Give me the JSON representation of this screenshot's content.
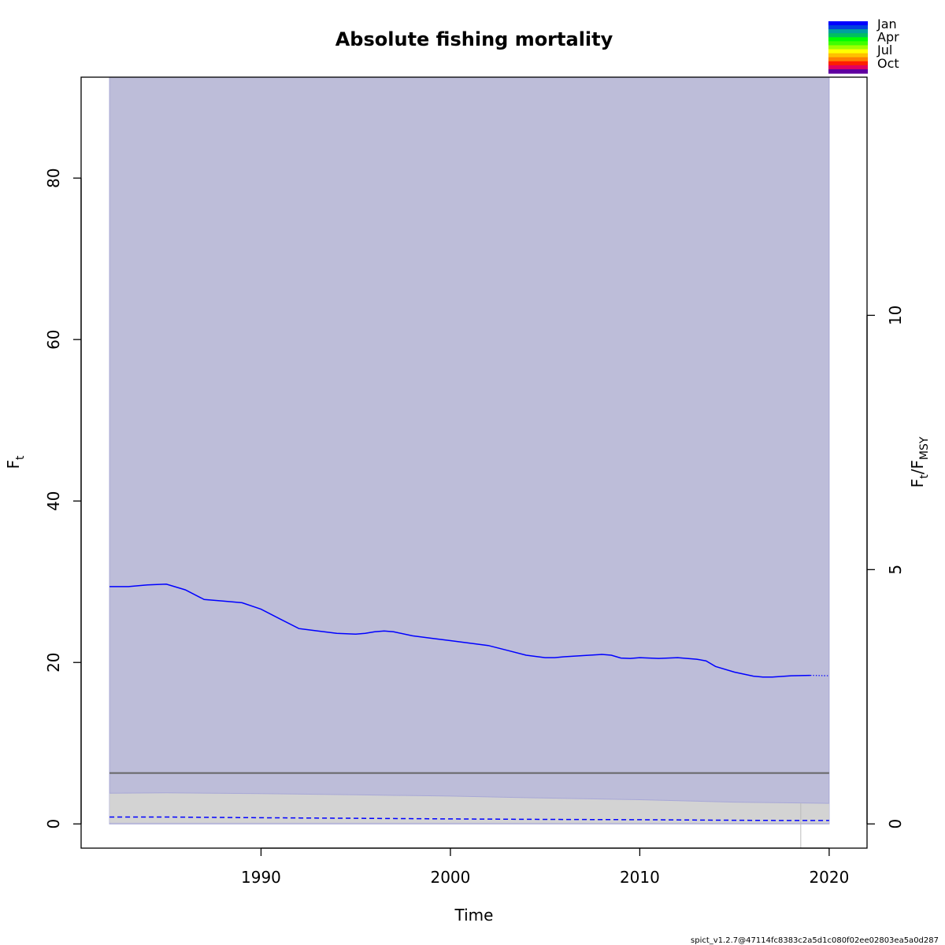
{
  "chart_data": {
    "type": "line",
    "title": "Absolute fishing mortality",
    "xlabel": "Time",
    "ylabel": {
      "main": "F",
      "sub": "t"
    },
    "ylabel_right": {
      "main": "F",
      "sub": "t",
      "sep": "/F",
      "sub2": "MSY"
    },
    "xlim": [
      1980.5,
      2022
    ],
    "ylim": [
      -3,
      92.5
    ],
    "ylim_right_ratio": 6.3,
    "x_ticks": [
      1990,
      2000,
      2010,
      2020
    ],
    "x_tick_labels": [
      "1990",
      "2000",
      "2010",
      "2020"
    ],
    "y_ticks": [
      0,
      20,
      40,
      60,
      80
    ],
    "y_tick_labels": [
      "0",
      "20",
      "40",
      "60",
      "80"
    ],
    "y_right_ticks": [
      0,
      5,
      10
    ],
    "y_right_tick_labels": [
      "0",
      "5",
      "10"
    ],
    "grid": false,
    "ci_band": {
      "x": [
        1982,
        2020
      ],
      "lower": 0,
      "upper": 92.5,
      "color": "#bdbdd9"
    },
    "fmsy": {
      "value": 6.3,
      "color": "#666666"
    },
    "fmsy_band": {
      "x": [
        1982,
        1985,
        1990,
        1995,
        2000,
        2005,
        2010,
        2015,
        2018.5,
        2020
      ],
      "upper": [
        3.8,
        3.85,
        3.75,
        3.6,
        3.45,
        3.2,
        3.0,
        2.7,
        2.6,
        2.55
      ],
      "lower": [
        0.15,
        0.15,
        0.15,
        0.15,
        0.15,
        0.15,
        0.15,
        0.15,
        0.15,
        0.15
      ],
      "color": "#d3d3d3"
    },
    "series": [
      {
        "type": "estimate",
        "color": "#0000ff",
        "x": [
          1982,
          1983,
          1984,
          1985,
          1986,
          1987,
          1988,
          1989,
          1990,
          1991,
          1992,
          1993,
          1994,
          1995,
          1995.5,
          1996,
          1996.5,
          1997,
          1998,
          1999,
          2000,
          2001,
          2002,
          2003,
          2004,
          2005,
          2005.5,
          2006,
          2007,
          2008,
          2008.5,
          2009,
          2009.5,
          2010,
          2011,
          2012,
          2013,
          2013.5,
          2014,
          2015,
          2016,
          2016.5,
          2017,
          2018,
          2019
        ],
        "y": [
          29.4,
          29.4,
          29.6,
          29.7,
          29.0,
          27.8,
          27.6,
          27.4,
          26.6,
          25.4,
          24.2,
          23.9,
          23.6,
          23.5,
          23.6,
          23.8,
          23.9,
          23.8,
          23.3,
          23.0,
          22.7,
          22.4,
          22.1,
          21.5,
          20.9,
          20.6,
          20.6,
          20.7,
          20.85,
          21.0,
          20.9,
          20.55,
          20.5,
          20.6,
          20.5,
          20.6,
          20.4,
          20.2,
          19.5,
          18.8,
          18.3,
          18.2,
          18.2,
          18.35,
          18.4
        ]
      },
      {
        "type": "prediction",
        "color": "#0000ff",
        "x": [
          2019,
          2020
        ],
        "y": [
          18.4,
          18.35
        ]
      },
      {
        "type": "estimate-lower",
        "color": "#0000ff",
        "x": [
          1982,
          1985,
          1990,
          1995,
          2000,
          2005,
          2010,
          2015,
          2018,
          2020
        ],
        "y": [
          0.85,
          0.85,
          0.77,
          0.7,
          0.62,
          0.56,
          0.52,
          0.45,
          0.42,
          0.42
        ]
      }
    ],
    "vline": {
      "x": 2018.5,
      "color": "#bbbbbb"
    },
    "legend": {
      "position": "top-right",
      "type": "color-scale",
      "labels": [
        "Jan",
        "Apr",
        "Jul",
        "Oct"
      ],
      "colors": [
        "#0000ff",
        "#0040e0",
        "#00a0a0",
        "#00c060",
        "#00ff00",
        "#40ff00",
        "#a0ff00",
        "#ffff00",
        "#ffc000",
        "#ff8000",
        "#ff2000",
        "#e00060",
        "#6000a0"
      ]
    },
    "footer": "spict_v1.2.7@47114fc8383c2a5d1c080f02ee02803ea5a0d287"
  }
}
